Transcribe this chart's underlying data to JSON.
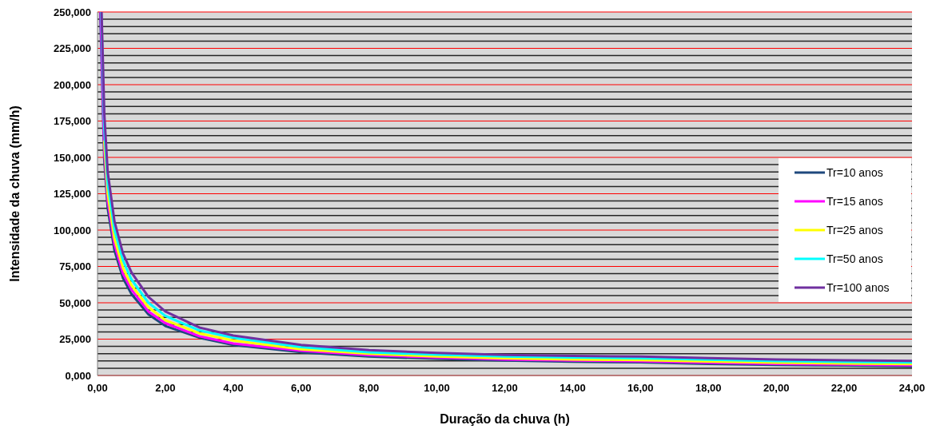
{
  "chart_data": {
    "type": "line",
    "xlabel": "Duração da chuva (h)",
    "ylabel": "Intensidade da chuva (mm/h)",
    "xlim": [
      0,
      24
    ],
    "ylim": [
      0,
      250
    ],
    "xticks": [
      {
        "value": 0,
        "label": "0,00"
      },
      {
        "value": 2,
        "label": "2,00"
      },
      {
        "value": 4,
        "label": "4,00"
      },
      {
        "value": 6,
        "label": "6,00"
      },
      {
        "value": 8,
        "label": "8,00"
      },
      {
        "value": 10,
        "label": "10,00"
      },
      {
        "value": 12,
        "label": "12,00"
      },
      {
        "value": 14,
        "label": "14,00"
      },
      {
        "value": 16,
        "label": "16,00"
      },
      {
        "value": 18,
        "label": "18,00"
      },
      {
        "value": 20,
        "label": "20,00"
      },
      {
        "value": 22,
        "label": "22,00"
      },
      {
        "value": 24,
        "label": "24,00"
      }
    ],
    "yticks": [
      {
        "value": 0,
        "label": "0,000"
      },
      {
        "value": 25,
        "label": "25,000"
      },
      {
        "value": 50,
        "label": "50,000"
      },
      {
        "value": 75,
        "label": "75,000"
      },
      {
        "value": 100,
        "label": "100,000"
      },
      {
        "value": 125,
        "label": "125,000"
      },
      {
        "value": 150,
        "label": "150,000"
      },
      {
        "value": 175,
        "label": "175,000"
      },
      {
        "value": 200,
        "label": "200,000"
      },
      {
        "value": 225,
        "label": "225,000"
      },
      {
        "value": 250,
        "label": "250,000"
      }
    ],
    "grid": "y",
    "legend": "right",
    "marker": "none",
    "line_style": "solid",
    "series": [
      {
        "name": "Tr=10 anos",
        "color": "#1f497d",
        "x": [
          0.08,
          0.2,
          0.3,
          0.5,
          0.75,
          1,
          1.5,
          2,
          3,
          4,
          6,
          8,
          10,
          12,
          14,
          16,
          18,
          20,
          22,
          24
        ],
        "values": [
          250,
          148,
          115,
          86,
          67,
          56,
          42,
          34,
          26,
          21,
          16,
          13,
          11.5,
          10.3,
          9.5,
          9,
          8,
          7.3,
          6.8,
          6.3
        ]
      },
      {
        "name": "Tr=15 anos",
        "color": "#ff00ff",
        "x": [
          0.09,
          0.2,
          0.3,
          0.5,
          0.75,
          1,
          1.5,
          2,
          3,
          4,
          6,
          8,
          10,
          12,
          14,
          16,
          18,
          20,
          22,
          24
        ],
        "values": [
          250,
          154,
          120,
          90,
          70,
          59,
          44,
          36,
          27,
          22,
          17,
          14,
          12.3,
          11,
          10.3,
          9.8,
          8.8,
          8,
          7.5,
          7
        ]
      },
      {
        "name": "Tr=25 anos",
        "color": "#ffff00",
        "x": [
          0.2,
          0.3,
          0.5,
          0.75,
          1,
          1.5,
          2,
          3,
          4,
          6,
          8,
          10,
          12,
          14,
          16,
          18,
          20,
          22,
          24
        ],
        "values": [
          161,
          125,
          94,
          74,
          62,
          47,
          38,
          29,
          24,
          18,
          15,
          13,
          11.8,
          11,
          10.6,
          9.6,
          8.8,
          8.3,
          7.8
        ]
      },
      {
        "name": "Tr=50 anos",
        "color": "#00ffff",
        "x": [
          0.11,
          0.2,
          0.3,
          0.5,
          0.75,
          1,
          1.5,
          2,
          3,
          4,
          6,
          8,
          10,
          12,
          14,
          16,
          18,
          20,
          22,
          24
        ],
        "values": [
          250,
          170,
          132,
          100,
          79,
          66,
          50,
          41,
          31,
          26,
          19.5,
          16,
          14.3,
          13,
          12.3,
          11.8,
          10.8,
          9.9,
          9.4,
          8.9
        ]
      },
      {
        "name": "Tr=100 anos",
        "color": "#7030a0",
        "x": [
          0.12,
          0.2,
          0.3,
          0.5,
          0.75,
          1,
          1.5,
          2,
          3,
          4,
          6,
          8,
          10,
          12,
          14,
          16,
          18,
          20,
          22,
          24
        ],
        "values": [
          250,
          180,
          140,
          106,
          84,
          71,
          54,
          44,
          33,
          27.5,
          21,
          17.5,
          15.5,
          14.2,
          13.5,
          13,
          12,
          11,
          10.5,
          10
        ]
      }
    ]
  }
}
